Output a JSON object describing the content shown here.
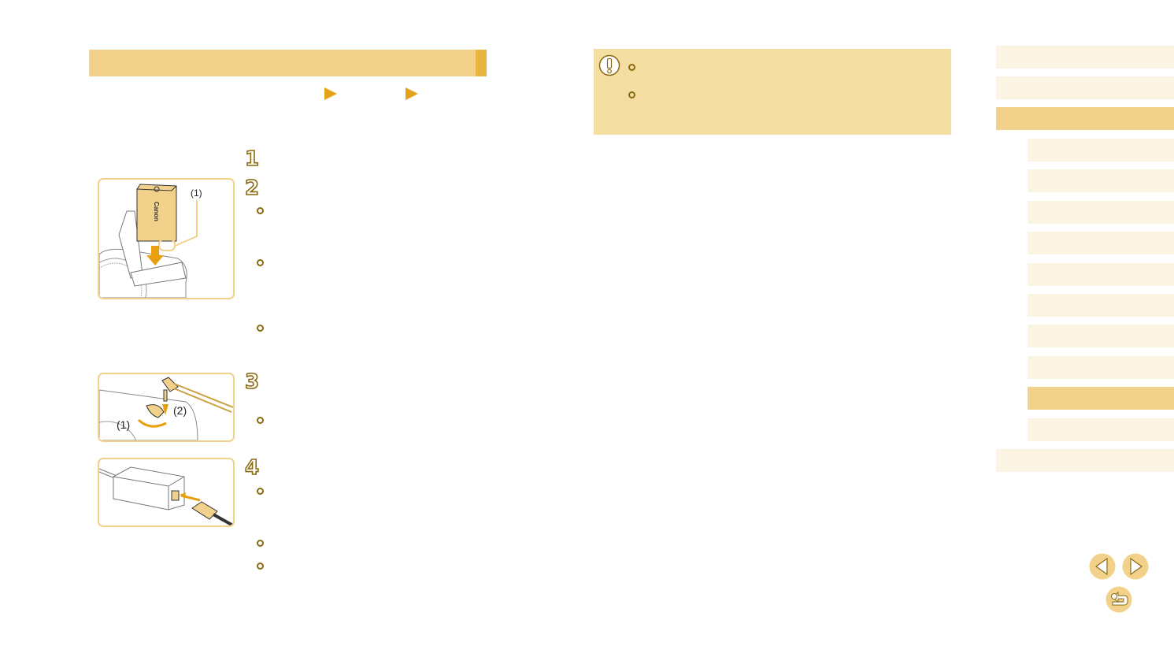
{
  "header": {
    "title": "",
    "accent_color": "#f2d28b"
  },
  "breadcrumb_arrows": [
    "triangle-right-icon",
    "triangle-right-icon"
  ],
  "steps": [
    {
      "number": "1"
    },
    {
      "number": "2"
    },
    {
      "number": "3"
    },
    {
      "number": "4"
    }
  ],
  "illustrations": {
    "battery": {
      "callout": "(1)",
      "brand": "Canon"
    },
    "dc_coupler": {
      "callout_1": "(1)",
      "callout_2": "(2)"
    },
    "ac_adapter": {}
  },
  "note": {
    "icon": "caution-icon",
    "bullets": 2
  },
  "sidebar": {
    "items": [
      {
        "level": 1,
        "active": false
      },
      {
        "level": 1,
        "active": false
      },
      {
        "level": 1,
        "active": true
      },
      {
        "level": 2,
        "active": false
      },
      {
        "level": 2,
        "active": false
      },
      {
        "level": 2,
        "active": false
      },
      {
        "level": 2,
        "active": false
      },
      {
        "level": 2,
        "active": false
      },
      {
        "level": 2,
        "active": false
      },
      {
        "level": 2,
        "active": false
      },
      {
        "level": 2,
        "active": false
      },
      {
        "level": 2,
        "active": true
      },
      {
        "level": 2,
        "active": false
      },
      {
        "level": 1,
        "active": false
      }
    ]
  },
  "nav": {
    "prev": "previous-page-icon",
    "next": "next-page-icon",
    "back": "return-icon"
  },
  "colors": {
    "accent": "#f2d28b",
    "accent_dark": "#e8b640",
    "step_outline": "#8a6a10",
    "sidebar_item": "#fcf4e3",
    "note_bg": "#f4dea2"
  }
}
